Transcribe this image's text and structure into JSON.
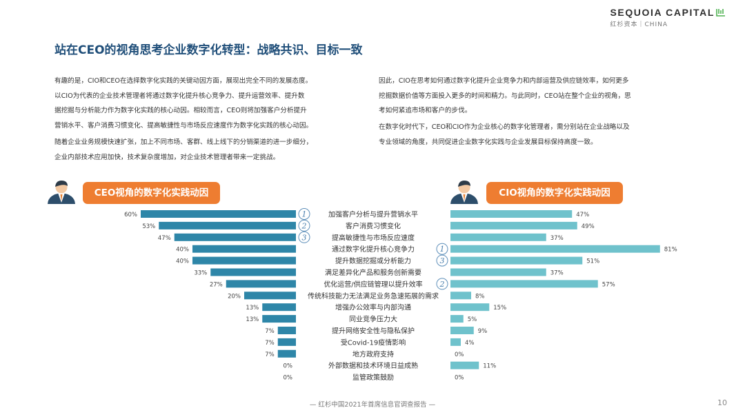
{
  "logo": {
    "name": "SEQUOIA CAPITAL",
    "sub": "红杉资本｜CHINA"
  },
  "title": "站在CEO的视角思考企业数字化转型：战略共识、目标一致",
  "paragraphs_left": [
    [
      "有趣的是，CIO和CEO在选择数字化实践的关键动因方面，展现出完全不同的发展态度。",
      "以CIO为代表的企业技术管理者将通过数字化提升核心竞争力、提升运营效率、提升数",
      "据挖掘与分析能力作为数字化实践的核心动因。相较而言，CEO则将加强客户分析提升",
      "营销水平、客户消费习惯变化、提高敏捷性与市场反应速度作为数字化实践的核心动因。"
    ],
    [
      "随着企业业务规模快速扩张，加上不同市场、客群、线上线下的分销渠道的进一步细分，",
      "企业内部技术应用加快，技术复杂度增加，对企业技术管理者带来一定挑战。"
    ]
  ],
  "paragraphs_right": [
    [
      "因此，CIO在思考如何通过数字化提升企业竞争力和内部运营及供应链效率，如何更多",
      "挖掘数据价值等方面投入更多的时间和精力。与此同时，CEO站在整个企业的视角，思",
      "考如何紧追市场和客户的步伐。"
    ],
    [
      "在数字化时代下，CEO和CIO作为企业核心的数字化管理者，需分别站在企业战略以及",
      "专业领域的角度，共同促进企业数字化实践与企业发展目标保持高度一致。"
    ]
  ],
  "chart_data": {
    "type": "bar",
    "title_left": "CEO视角的数字化实践动因",
    "title_right": "CIO视角的数字化实践动因",
    "categories": [
      "加强客户分析与提升营销水平",
      "客户消费习惯变化",
      "提高敏捷性与市场反应速度",
      "通过数字化提升核心竞争力",
      "提升数据挖掘或分析能力",
      "满足差异化产品和服务创新需要",
      "优化运营/供应链管理以提升效率",
      "传统科技能力无法满足业务急速拓展的需求",
      "增强办公效率与内部沟通",
      "同业竞争压力大",
      "提升网络安全性与隐私保护",
      "受Covid-19疫情影响",
      "地方政府支持",
      "外部数据和技术环境日益成熟",
      "监管政策鼓励"
    ],
    "series": [
      {
        "name": "CEO",
        "values": [
          60,
          53,
          47,
          40,
          40,
          33,
          27,
          20,
          13,
          13,
          7,
          7,
          7,
          0,
          0
        ],
        "color": "#2e86a8"
      },
      {
        "name": "CIO",
        "values": [
          47,
          49,
          37,
          81,
          51,
          37,
          57,
          8,
          15,
          5,
          9,
          4,
          0,
          11,
          0
        ],
        "color": "#6fc2cc"
      }
    ],
    "ceo_rank": {
      "0": "1",
      "1": "2",
      "2": "3"
    },
    "cio_rank": {
      "3": "1",
      "4": "3",
      "6": "2"
    },
    "xlim": [
      0,
      100
    ],
    "value_suffix": "%"
  },
  "footer": "— 红杉中国2021年首席信息官调查报告 —",
  "page_number": "10"
}
